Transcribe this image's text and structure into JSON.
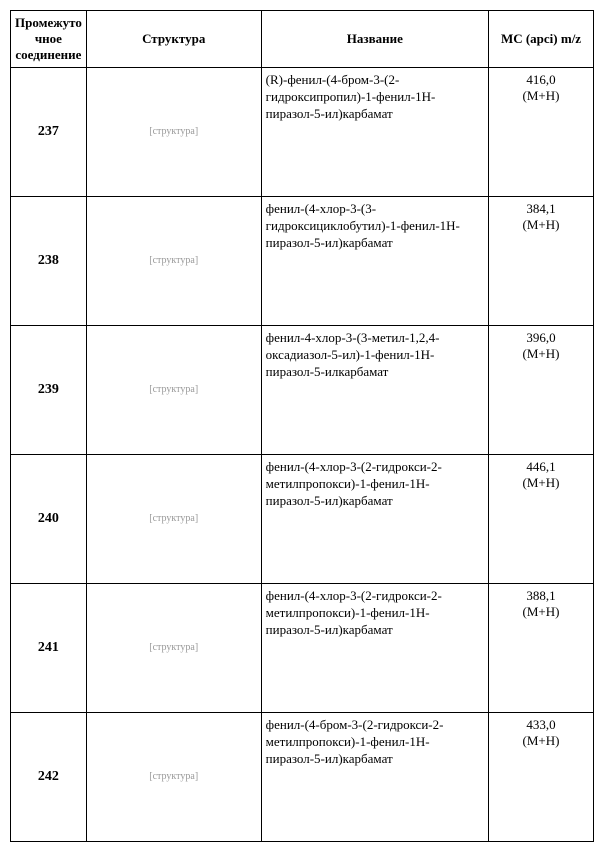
{
  "headers": {
    "id": "Промежуто чное соединение",
    "structure": "Структура",
    "name": "Название",
    "ms": "МС (apci) m/z"
  },
  "rows": [
    {
      "id": "237",
      "structure": "[структура]",
      "name": "(R)-фенил-(4-бром-3-(2-гидроксипропил)-1-фенил-1H-пиразол-5-ил)карбамат",
      "ms_value": "416,0",
      "ms_adduct": "(M+H)"
    },
    {
      "id": "238",
      "structure": "[структура]",
      "name": "фенил-(4-хлор-3-(3-гидроксициклобутил)-1-фенил-1H-пиразол-5-ил)карбамат",
      "ms_value": "384,1",
      "ms_adduct": "(M+H)"
    },
    {
      "id": "239",
      "structure": "[структура]",
      "name": "фенил-4-хлор-3-(3-метил-1,2,4-оксадиазол-5-ил)-1-фенил-1H-пиразол-5-илкарбамат",
      "ms_value": "396,0",
      "ms_adduct": "(M+H)"
    },
    {
      "id": "240",
      "structure": "[структура]",
      "name": "фенил-(4-хлор-3-(2-гидрокси-2-метилпропокси)-1-фенил-1H-пиразол-5-ил)карбамат",
      "ms_value": "446,1",
      "ms_adduct": "(M+H)"
    },
    {
      "id": "241",
      "structure": "[структура]",
      "name": "фенил-(4-хлор-3-(2-гидрокси-2-метилпропокси)-1-фенил-1H-пиразол-5-ил)карбамат",
      "ms_value": "388,1",
      "ms_adduct": "(M+H)"
    },
    {
      "id": "242",
      "structure": "[структура]",
      "name": "фенил-(4-бром-3-(2-гидрокси-2-метилпропокси)-1-фенил-1H-пиразол-5-ил)карбамат",
      "ms_value": "433,0",
      "ms_adduct": "(M+H)"
    }
  ]
}
